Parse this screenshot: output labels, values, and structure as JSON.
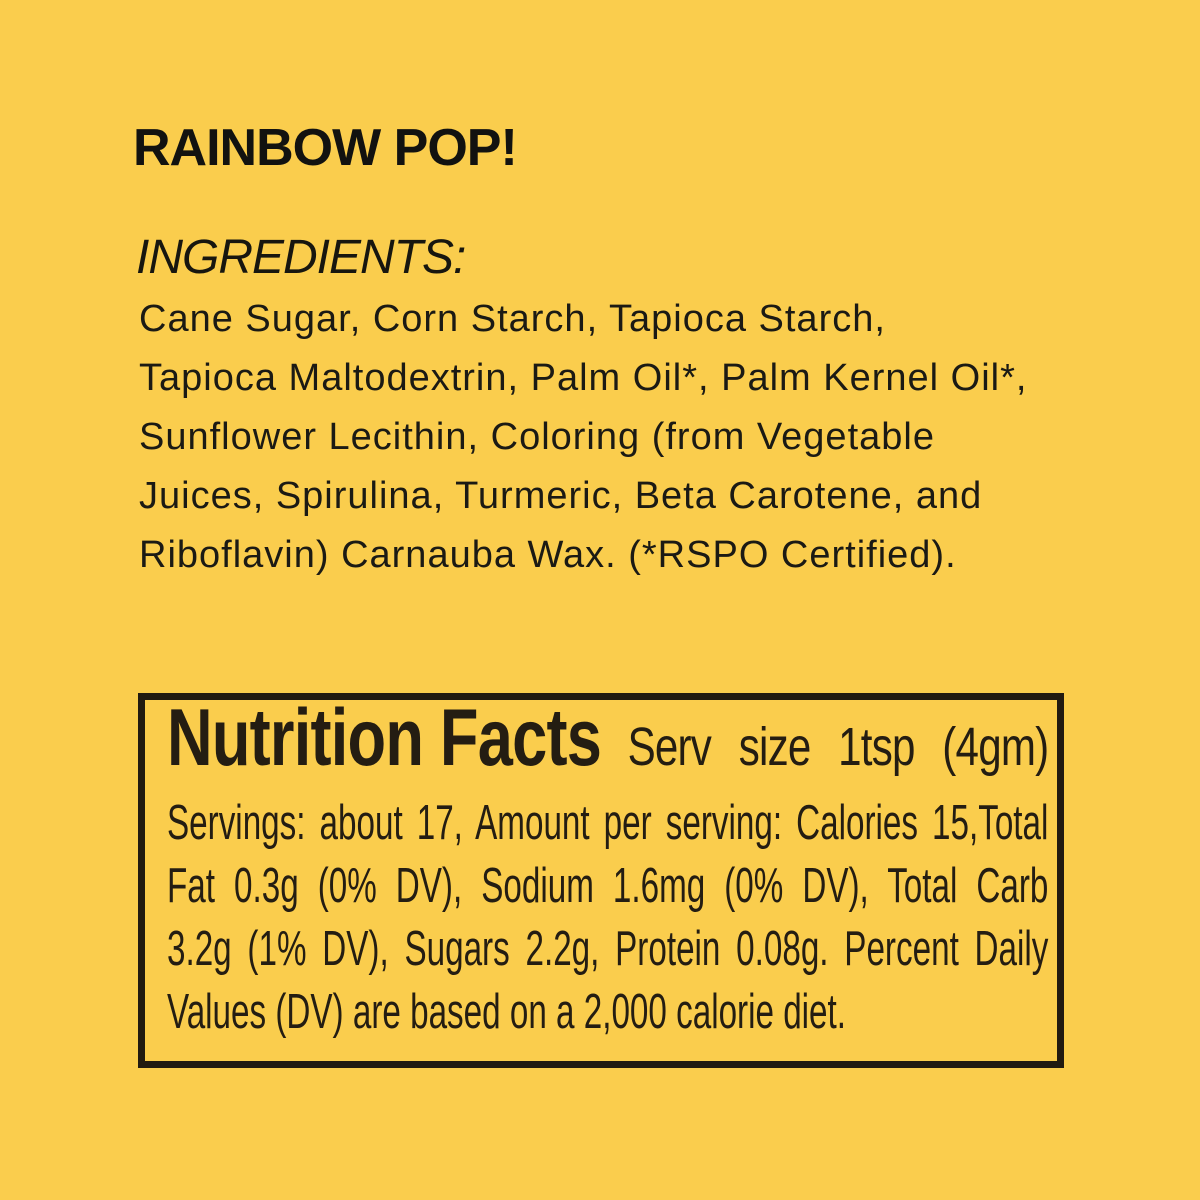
{
  "page": {
    "background_color": "#FACD4D",
    "text_color": "#161511"
  },
  "title": "RAINBOW POP!",
  "ingredients": {
    "heading": "INGREDIENTS:",
    "lines": [
      "Cane Sugar, Corn Starch, Tapioca Starch,",
      "Tapioca Maltodextrin, Palm Oil*, Palm Kernel Oil*,",
      "Sunflower Lecithin, Coloring (from Vegetable",
      "Juices, Spirulina, Turmeric, Beta Carotene, and",
      "Riboflavin) Carnauba Wax. (*RSPO Certified)."
    ]
  },
  "nutrition": {
    "panel_title": "Nutrition Facts",
    "serving_words": [
      "Serv",
      "size",
      "1tsp",
      "(4gm)"
    ],
    "lines": [
      "Servings: about 17, Amount per serving: Calories 15,Total",
      "Fat 0.3g (0% DV), Sodium 1.6mg (0% DV), Total Carb",
      "3.2g (1% DV), Sugars 2.2g, Protein 0.08g. Percent Daily",
      "Values (DV) are based on a 2,000 calorie diet."
    ],
    "border_color": "#211a10"
  }
}
